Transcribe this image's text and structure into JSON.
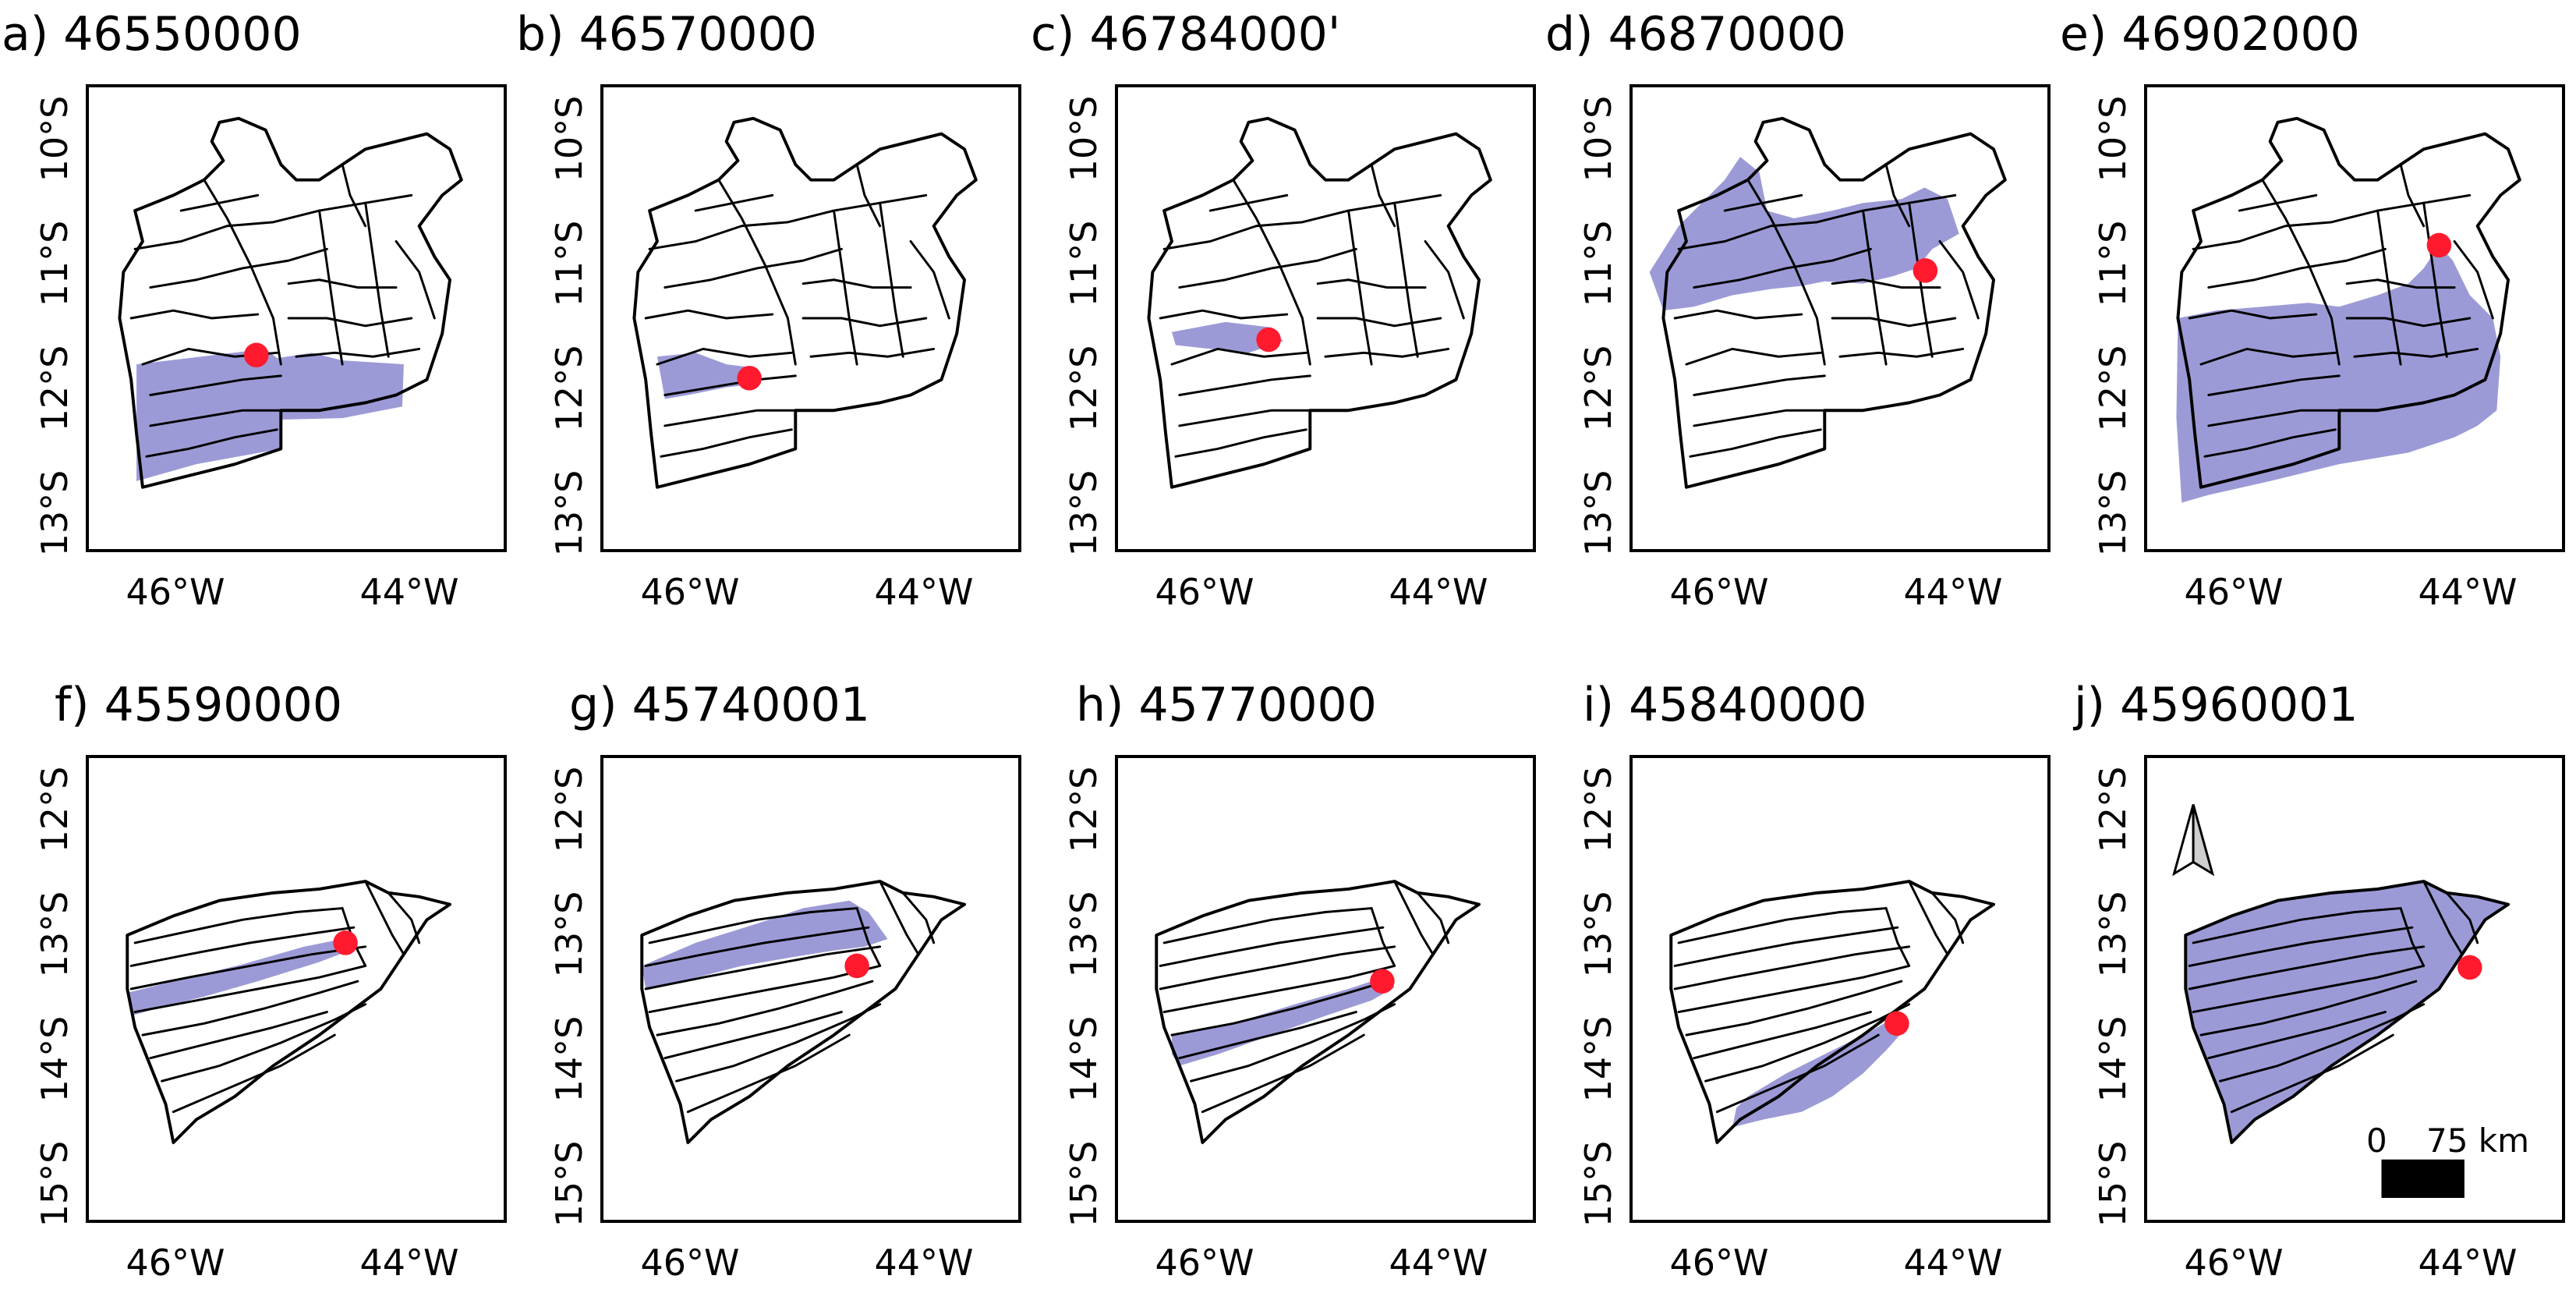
{
  "figure": {
    "colors": {
      "basin_fill": "#9c9ad6",
      "station": "#ff1a2e",
      "outline": "#000000",
      "scale_bar": "#000000"
    },
    "icons": {
      "north_arrow": "north-arrow-icon",
      "station": "station-dot-icon"
    },
    "panels": [
      {
        "label": "a) 46550000",
        "y_ticks": [
          "10°S",
          "11°S",
          "12°S",
          "13°S"
        ],
        "x_ticks": [
          "46°W",
          "44°W"
        ]
      },
      {
        "label": "b) 46570000",
        "y_ticks": [
          "10°S",
          "11°S",
          "12°S",
          "13°S"
        ],
        "x_ticks": [
          "46°W",
          "44°W"
        ]
      },
      {
        "label": "c) 46784000'",
        "y_ticks": [
          "10°S",
          "11°S",
          "12°S",
          "13°S"
        ],
        "x_ticks": [
          "46°W",
          "44°W"
        ]
      },
      {
        "label": "d) 46870000",
        "y_ticks": [
          "10°S",
          "11°S",
          "12°S",
          "13°S"
        ],
        "x_ticks": [
          "46°W",
          "44°W"
        ]
      },
      {
        "label": "e) 46902000",
        "y_ticks": [
          "10°S",
          "11°S",
          "12°S",
          "13°S"
        ],
        "x_ticks": [
          "46°W",
          "44°W"
        ]
      },
      {
        "label": "f) 45590000",
        "y_ticks": [
          "12°S",
          "13°S",
          "14°S",
          "15°S"
        ],
        "x_ticks": [
          "46°W",
          "44°W"
        ]
      },
      {
        "label": "g) 45740001",
        "y_ticks": [
          "12°S",
          "13°S",
          "14°S",
          "15°S"
        ],
        "x_ticks": [
          "46°W",
          "44°W"
        ]
      },
      {
        "label": "h) 45770000",
        "y_ticks": [
          "12°S",
          "13°S",
          "14°S",
          "15°S"
        ],
        "x_ticks": [
          "46°W",
          "44°W"
        ]
      },
      {
        "label": "i) 45840000",
        "y_ticks": [
          "12°S",
          "13°S",
          "14°S",
          "15°S"
        ],
        "x_ticks": [
          "46°W",
          "44°W"
        ]
      },
      {
        "label": "j) 45960001",
        "y_ticks": [
          "12°S",
          "13°S",
          "14°S",
          "15°S"
        ],
        "x_ticks": [
          "46°W",
          "44°W"
        ]
      }
    ],
    "scale": {
      "zero": "0",
      "distance": "75 km"
    }
  }
}
